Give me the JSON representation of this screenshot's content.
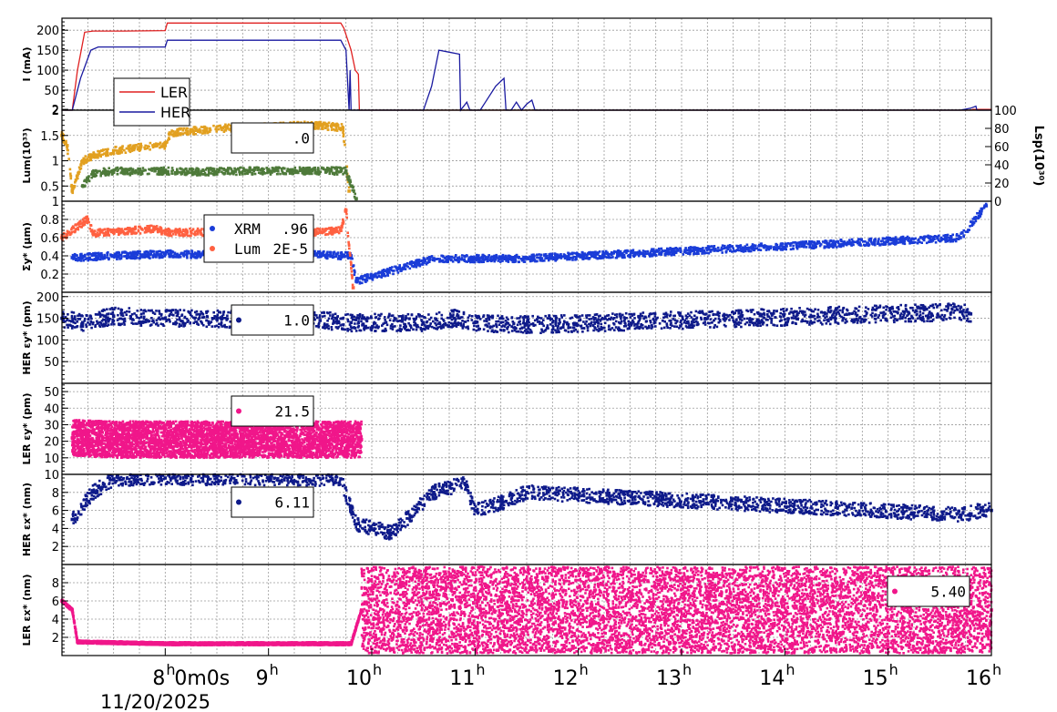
{
  "chart_data": {
    "type": "scatter",
    "date_label": "11/20/2025",
    "x_ticks": [
      {
        "h": 8,
        "label": "8"
      },
      {
        "h": 9,
        "label": "9"
      },
      {
        "h": 10,
        "label": "10"
      },
      {
        "h": 11,
        "label": "11"
      },
      {
        "h": 12,
        "label": "12"
      },
      {
        "h": 13,
        "label": "13"
      },
      {
        "h": 14,
        "label": "14"
      },
      {
        "h": 15,
        "label": "15"
      },
      {
        "h": 16,
        "label": "16"
      }
    ],
    "first_tick_suffix": "0m0s",
    "xlim": [
      7.0,
      16.0
    ],
    "panels": [
      {
        "id": "current",
        "ylabel": "I (mA)",
        "ylim": [
          0,
          230
        ],
        "yticks": [
          2,
          50,
          100,
          150,
          200
        ],
        "legend": [
          {
            "name": "LER",
            "color": "#e02020"
          },
          {
            "name": "HER",
            "color": "#1a1aa0"
          }
        ],
        "series": [
          {
            "name": "LER",
            "color": "#e02020",
            "style": "line",
            "points": [
              [
                7.0,
                0
              ],
              [
                7.05,
                0
              ],
              [
                7.1,
                0
              ],
              [
                7.15,
                100
              ],
              [
                7.22,
                195
              ],
              [
                7.3,
                198
              ],
              [
                7.6,
                198
              ],
              [
                8.0,
                199
              ],
              [
                8.02,
                218
              ],
              [
                8.5,
                218
              ],
              [
                9.0,
                218
              ],
              [
                9.5,
                218
              ],
              [
                9.7,
                218
              ],
              [
                9.73,
                205
              ],
              [
                9.8,
                150
              ],
              [
                9.84,
                100
              ],
              [
                9.87,
                90
              ],
              [
                9.88,
                0
              ],
              [
                10.5,
                0
              ],
              [
                11.0,
                0
              ],
              [
                12.0,
                0
              ],
              [
                15.8,
                0
              ],
              [
                15.82,
                2
              ],
              [
                16.0,
                2
              ]
            ]
          },
          {
            "name": "HER",
            "color": "#1a1aa0",
            "style": "line",
            "points": [
              [
                7.0,
                0
              ],
              [
                7.1,
                0
              ],
              [
                7.18,
                80
              ],
              [
                7.28,
                150
              ],
              [
                7.35,
                158
              ],
              [
                8.0,
                158
              ],
              [
                8.02,
                175
              ],
              [
                8.5,
                175
              ],
              [
                9.0,
                175
              ],
              [
                9.5,
                175
              ],
              [
                9.7,
                175
              ],
              [
                9.75,
                150
              ],
              [
                9.78,
                0
              ],
              [
                9.79,
                100
              ],
              [
                9.8,
                0
              ],
              [
                10.5,
                0
              ],
              [
                10.58,
                60
              ],
              [
                10.65,
                150
              ],
              [
                10.75,
                145
              ],
              [
                10.85,
                140
              ],
              [
                10.86,
                0
              ],
              [
                10.92,
                20
              ],
              [
                10.95,
                0
              ],
              [
                11.05,
                0
              ],
              [
                11.1,
                20
              ],
              [
                11.2,
                60
              ],
              [
                11.28,
                80
              ],
              [
                11.3,
                0
              ],
              [
                11.35,
                0
              ],
              [
                11.4,
                20
              ],
              [
                11.45,
                0
              ],
              [
                11.5,
                15
              ],
              [
                11.55,
                25
              ],
              [
                11.58,
                0
              ],
              [
                15.7,
                0
              ],
              [
                15.8,
                5
              ],
              [
                15.85,
                10
              ],
              [
                15.86,
                0
              ],
              [
                16.0,
                0
              ]
            ]
          }
        ]
      },
      {
        "id": "lum",
        "ylabel": "Lum(10³³)",
        "ylim": [
          0.2,
          2.0
        ],
        "yticks": [
          0.5,
          1.0,
          1.5,
          2.0
        ],
        "y2label": "Lsp(10³⁰)",
        "y2ticks": [
          0,
          20,
          40,
          60,
          80,
          100
        ],
        "legend_value": ".0",
        "series": [
          {
            "name": "Lum",
            "color": "#e2a020",
            "style": "dots",
            "points": [
              [
                7.0,
                1.5
              ],
              [
                7.05,
                1.3
              ],
              [
                7.1,
                0.4
              ],
              [
                7.2,
                1.0
              ],
              [
                7.3,
                1.1
              ],
              [
                7.5,
                1.2
              ],
              [
                7.7,
                1.25
              ],
              [
                7.9,
                1.3
              ],
              [
                8.0,
                1.3
              ],
              [
                8.05,
                1.55
              ],
              [
                8.3,
                1.6
              ],
              [
                8.6,
                1.65
              ],
              [
                9.0,
                1.67
              ],
              [
                9.3,
                1.7
              ],
              [
                9.5,
                1.7
              ],
              [
                9.72,
                1.65
              ],
              [
                9.78,
                0.4
              ]
            ]
          },
          {
            "name": "Lsp",
            "color": "#4e7a3a",
            "style": "dots",
            "points": [
              [
                7.2,
                0.5
              ],
              [
                7.3,
                0.75
              ],
              [
                7.5,
                0.8
              ],
              [
                7.7,
                0.78
              ],
              [
                7.9,
                0.8
              ],
              [
                8.3,
                0.78
              ],
              [
                8.8,
                0.8
              ],
              [
                9.2,
                0.8
              ],
              [
                9.6,
                0.8
              ],
              [
                9.75,
                0.8
              ],
              [
                9.85,
                0.25
              ]
            ]
          }
        ]
      },
      {
        "id": "sigma",
        "ylabel": "Σy* (μm)",
        "ylim": [
          0,
          1.0
        ],
        "yticks": [
          0.2,
          0.4,
          0.6,
          0.8,
          1.0
        ],
        "legend": [
          {
            "name": "XRM",
            "value": ".96",
            "color": "#1a3cd8"
          },
          {
            "name": "Lum",
            "value": "2E-5",
            "color": "#ff6040"
          }
        ],
        "series": [
          {
            "name": "XRM",
            "color": "#1a3cd8",
            "points": [
              [
                7.1,
                0.38
              ],
              [
                7.5,
                0.4
              ],
              [
                8.0,
                0.42
              ],
              [
                8.5,
                0.41
              ],
              [
                9.0,
                0.41
              ],
              [
                9.5,
                0.41
              ],
              [
                9.8,
                0.4
              ],
              [
                9.85,
                0.12
              ],
              [
                10.6,
                0.37
              ],
              [
                11.0,
                0.37
              ],
              [
                11.5,
                0.37
              ],
              [
                15.7,
                0.6
              ],
              [
                15.95,
                0.95
              ]
            ]
          },
          {
            "name": "Lum",
            "color": "#ff6040",
            "points": [
              [
                7.0,
                0.6
              ],
              [
                7.25,
                0.8
              ],
              [
                7.3,
                0.65
              ],
              [
                7.5,
                0.66
              ],
              [
                7.9,
                0.7
              ],
              [
                8.0,
                0.66
              ],
              [
                8.5,
                0.66
              ],
              [
                9.0,
                0.67
              ],
              [
                9.5,
                0.66
              ],
              [
                9.7,
                0.68
              ],
              [
                9.75,
                0.9
              ],
              [
                9.82,
                0.05
              ]
            ]
          }
        ]
      },
      {
        "id": "her_ey",
        "ylabel": "HER εy* (pm)",
        "ylim": [
          0,
          210
        ],
        "yticks": [
          50,
          100,
          150,
          200
        ],
        "legend_value": "1.0",
        "series": [
          {
            "name": "HER εy*",
            "color": "#0e1a8a",
            "points": [
              [
                7.0,
                150
              ],
              [
                7.2,
                140
              ],
              [
                7.5,
                155
              ],
              [
                8.0,
                150
              ],
              [
                8.5,
                148
              ],
              [
                9.0,
                145
              ],
              [
                9.5,
                145
              ],
              [
                9.8,
                140
              ],
              [
                10.5,
                140
              ],
              [
                10.8,
                150
              ],
              [
                11.0,
                140
              ],
              [
                11.5,
                135
              ],
              [
                15.7,
                165
              ],
              [
                15.8,
                160
              ]
            ]
          }
        ]
      },
      {
        "id": "ler_ey",
        "ylabel": "LER εy* (pm)",
        "ylim": [
          0,
          55
        ],
        "yticks": [
          10,
          20,
          30,
          40,
          50
        ],
        "legend_value": "21.5",
        "series": [
          {
            "name": "LER εy*",
            "color": "#f0168a",
            "points": [
              [
                7.1,
                22
              ],
              [
                7.5,
                21
              ],
              [
                8.0,
                21
              ],
              [
                8.5,
                21
              ],
              [
                9.0,
                21
              ],
              [
                9.5,
                21
              ],
              [
                9.9,
                21
              ]
            ]
          }
        ]
      },
      {
        "id": "her_ex",
        "ylabel": "HER εx* (nm)",
        "ylim": [
          0,
          10
        ],
        "yticks": [
          2,
          4,
          6,
          8,
          10
        ],
        "legend_value": "6.11",
        "series": [
          {
            "name": "HER εx*",
            "color": "#0e1a8a",
            "points": [
              [
                7.1,
                5
              ],
              [
                7.3,
                8
              ],
              [
                7.5,
                9.5
              ],
              [
                8.0,
                9.6
              ],
              [
                8.5,
                9.6
              ],
              [
                9.0,
                9.6
              ],
              [
                9.7,
                9.5
              ],
              [
                9.85,
                4.5
              ],
              [
                10.2,
                3.5
              ],
              [
                10.6,
                8
              ],
              [
                10.9,
                9
              ],
              [
                11.0,
                6
              ],
              [
                11.3,
                7
              ],
              [
                11.5,
                8
              ],
              [
                15.7,
                5.5
              ],
              [
                15.9,
                6
              ],
              [
                16.0,
                6
              ]
            ]
          }
        ]
      },
      {
        "id": "ler_ex",
        "ylabel": "LER εx* (nm)",
        "ylim": [
          0,
          10
        ],
        "yticks": [
          2,
          4,
          6,
          8
        ],
        "legend_value": "5.40",
        "series": [
          {
            "name": "LER εx*",
            "color": "#f0168a",
            "points": [
              [
                7.0,
                6
              ],
              [
                7.1,
                5
              ],
              [
                7.15,
                1.5
              ],
              [
                8.0,
                1.3
              ],
              [
                9.0,
                1.3
              ],
              [
                9.8,
                1.3
              ],
              [
                9.9,
                5
              ],
              [
                12.0,
                5
              ],
              [
                16.0,
                5
              ]
            ]
          }
        ]
      }
    ]
  }
}
